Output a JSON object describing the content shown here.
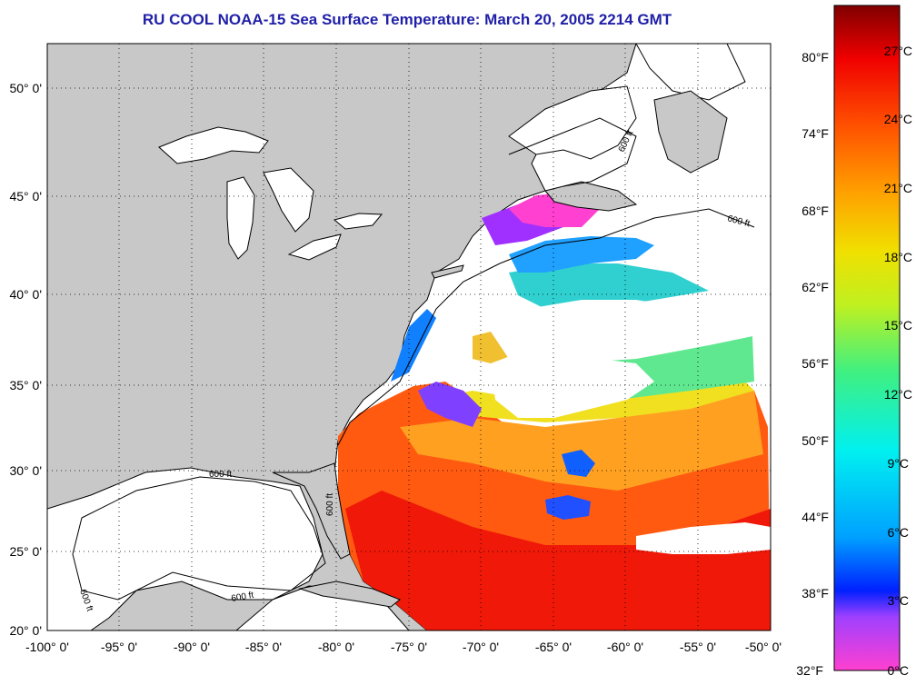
{
  "title": "RU COOL  NOAA-15  Sea Surface Temperature:  March 20, 2005 2214 GMT",
  "map": {
    "lon_range": [
      -100,
      -50
    ],
    "lat_range": [
      20,
      52
    ],
    "lat_ticks": [
      "50° 0'",
      "45° 0'",
      "40° 0'",
      "35° 0'",
      "30° 0'",
      "25° 0'",
      "20° 0'"
    ],
    "lon_ticks": [
      "-100° 0'",
      "-95° 0'",
      "-90° 0'",
      "-85° 0'",
      "-80° 0'",
      "-75° 0'",
      "-70° 0'",
      "-65° 0'",
      "-60° 0'",
      "-55° 0'",
      "-50° 0'"
    ],
    "isobath_label": "600 ft",
    "land_color": "#c8c8c8",
    "no_data_color": "#ffffff"
  },
  "colorbar": {
    "fahrenheit_labels": [
      "80°F",
      "74°F",
      "68°F",
      "62°F",
      "56°F",
      "50°F",
      "44°F",
      "38°F",
      "32°F"
    ],
    "celsius_labels": [
      "27°C",
      "24°C",
      "21°C",
      "18°C",
      "15°C",
      "12°C",
      "9°C",
      "6°C",
      "3°C",
      "0°C"
    ],
    "colors": [
      "#ff40d0",
      "#a040ff",
      "#0020ff",
      "#00a0ff",
      "#00f0f0",
      "#40f080",
      "#c0f020",
      "#f0e000",
      "#ffa000",
      "#ff5000",
      "#f00000",
      "#800000"
    ]
  }
}
